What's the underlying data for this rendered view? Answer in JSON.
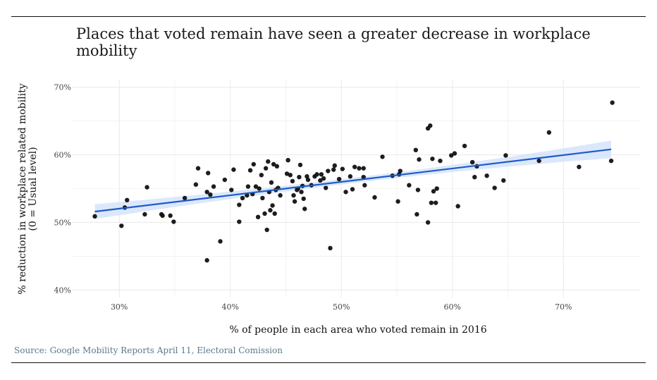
{
  "title": "Places that voted remain have seen a greater decrease in workplace mobility",
  "source": "Source: Google Mobility Reports April 11, Electoral Comission",
  "chart_data": {
    "type": "scatter",
    "title": "Places that voted remain have seen a greater decrease in workplace mobility",
    "xlabel": "% of people in each area who voted remain in 2016",
    "ylabel_lines": [
      "% reduction in workplace related mobility",
      "(0 = Usual level)"
    ],
    "xlim": [
      25.8,
      76.9
    ],
    "ylim": [
      38.9,
      71.1
    ],
    "x_ticks": [
      30,
      40,
      50,
      60,
      70
    ],
    "x_tick_labels": [
      "30%",
      "40%",
      "50%",
      "60%",
      "70%"
    ],
    "y_ticks": [
      40,
      50,
      60,
      70
    ],
    "y_tick_labels": [
      "40%",
      "50%",
      "60%",
      "70%"
    ],
    "grid": true,
    "colors": {
      "points": "#111111",
      "trend": "#1f5bc4",
      "band": "#cfe0fb",
      "grid": "#ebebeb"
    },
    "trend_line": {
      "x": [
        27.8,
        74.3
      ],
      "y": [
        51.6,
        60.8
      ],
      "band_halfwidth_start": 1.1,
      "band_halfwidth_mid": 0.4,
      "band_halfwidth_end": 1.3
    },
    "points": [
      [
        27.8,
        50.9
      ],
      [
        30.2,
        49.5
      ],
      [
        30.5,
        52.2
      ],
      [
        30.7,
        53.3
      ],
      [
        32.3,
        51.2
      ],
      [
        32.5,
        55.2
      ],
      [
        33.8,
        51.2
      ],
      [
        33.9,
        51.0
      ],
      [
        34.6,
        51.0
      ],
      [
        34.9,
        50.1
      ],
      [
        35.9,
        53.6
      ],
      [
        36.9,
        55.6
      ],
      [
        37.1,
        58.0
      ],
      [
        37.9,
        54.5
      ],
      [
        38.0,
        57.3
      ],
      [
        38.2,
        54.1
      ],
      [
        38.5,
        55.3
      ],
      [
        37.9,
        44.4
      ],
      [
        39.1,
        47.2
      ],
      [
        39.5,
        56.3
      ],
      [
        40.1,
        54.8
      ],
      [
        40.3,
        57.8
      ],
      [
        40.8,
        52.6
      ],
      [
        40.8,
        50.1
      ],
      [
        41.1,
        53.6
      ],
      [
        41.5,
        54.0
      ],
      [
        41.6,
        55.3
      ],
      [
        41.8,
        57.7
      ],
      [
        42.0,
        54.2
      ],
      [
        42.1,
        58.6
      ],
      [
        42.3,
        55.3
      ],
      [
        42.5,
        50.8
      ],
      [
        42.6,
        55.0
      ],
      [
        42.8,
        57.0
      ],
      [
        42.9,
        53.6
      ],
      [
        43.1,
        51.3
      ],
      [
        43.2,
        58.0
      ],
      [
        43.3,
        48.9
      ],
      [
        43.4,
        59.0
      ],
      [
        43.5,
        54.5
      ],
      [
        43.6,
        51.8
      ],
      [
        43.7,
        55.9
      ],
      [
        43.8,
        52.5
      ],
      [
        43.9,
        58.6
      ],
      [
        44.0,
        51.3
      ],
      [
        44.1,
        54.8
      ],
      [
        44.2,
        58.3
      ],
      [
        44.3,
        55.1
      ],
      [
        44.5,
        54.0
      ],
      [
        45.1,
        57.2
      ],
      [
        45.2,
        59.2
      ],
      [
        45.4,
        57.0
      ],
      [
        45.6,
        56.1
      ],
      [
        45.7,
        54.0
      ],
      [
        45.8,
        53.1
      ],
      [
        46.0,
        54.8
      ],
      [
        46.1,
        55.0
      ],
      [
        46.2,
        56.7
      ],
      [
        46.3,
        58.5
      ],
      [
        46.4,
        54.5
      ],
      [
        46.5,
        55.4
      ],
      [
        46.6,
        53.5
      ],
      [
        46.7,
        52.0
      ],
      [
        46.9,
        56.8
      ],
      [
        47.0,
        56.3
      ],
      [
        47.3,
        55.5
      ],
      [
        47.6,
        56.8
      ],
      [
        47.8,
        57.1
      ],
      [
        48.1,
        56.2
      ],
      [
        48.2,
        57.1
      ],
      [
        48.4,
        56.5
      ],
      [
        48.6,
        55.1
      ],
      [
        48.8,
        57.6
      ],
      [
        49.0,
        46.2
      ],
      [
        49.3,
        57.8
      ],
      [
        49.4,
        58.4
      ],
      [
        49.8,
        56.4
      ],
      [
        50.1,
        57.9
      ],
      [
        50.4,
        54.5
      ],
      [
        50.8,
        56.8
      ],
      [
        51.2,
        58.2
      ],
      [
        51.6,
        58.0
      ],
      [
        52.0,
        58.0
      ],
      [
        52.1,
        55.5
      ],
      [
        52.0,
        56.7
      ],
      [
        51.0,
        54.9
      ],
      [
        53.0,
        53.7
      ],
      [
        53.7,
        59.7
      ],
      [
        54.6,
        56.9
      ],
      [
        55.2,
        57.1
      ],
      [
        55.1,
        53.1
      ],
      [
        55.3,
        57.6
      ],
      [
        56.1,
        55.5
      ],
      [
        56.7,
        60.7
      ],
      [
        56.8,
        51.2
      ],
      [
        56.9,
        54.8
      ],
      [
        57.0,
        59.3
      ],
      [
        57.8,
        50.0
      ],
      [
        57.8,
        63.9
      ],
      [
        58.0,
        64.3
      ],
      [
        58.1,
        52.9
      ],
      [
        58.2,
        59.4
      ],
      [
        58.3,
        54.6
      ],
      [
        58.5,
        52.9
      ],
      [
        58.6,
        55.0
      ],
      [
        58.9,
        59.1
      ],
      [
        59.9,
        59.9
      ],
      [
        60.2,
        60.2
      ],
      [
        60.5,
        52.4
      ],
      [
        61.1,
        61.3
      ],
      [
        61.8,
        58.9
      ],
      [
        62.0,
        56.7
      ],
      [
        62.2,
        58.3
      ],
      [
        63.1,
        56.9
      ],
      [
        63.8,
        55.1
      ],
      [
        64.6,
        56.2
      ],
      [
        64.8,
        59.9
      ],
      [
        67.8,
        59.1
      ],
      [
        68.7,
        63.3
      ],
      [
        71.4,
        58.2
      ],
      [
        74.3,
        59.1
      ],
      [
        74.4,
        67.7
      ]
    ]
  }
}
